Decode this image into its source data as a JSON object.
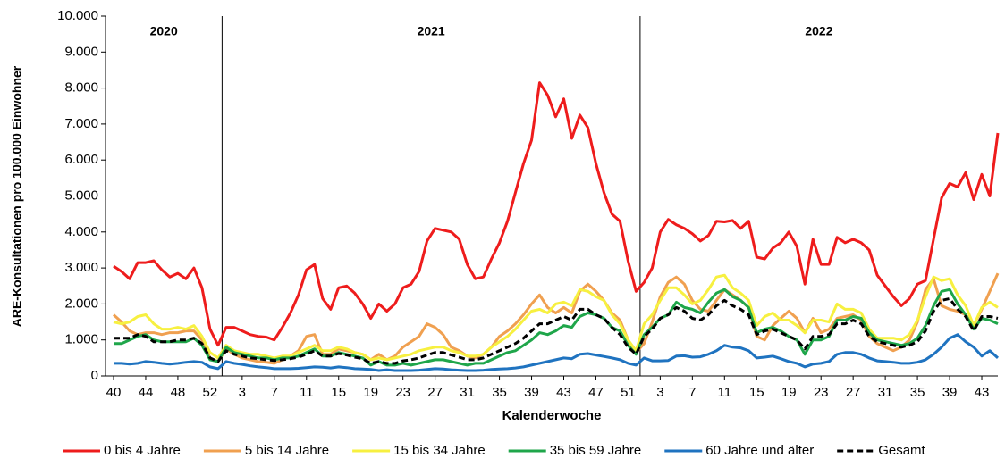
{
  "chart_data": {
    "type": "line",
    "y_label": "ARE-Konsultationen pro 100.000 Einwohner",
    "x_label": "Kalenderwoche",
    "year_labels": [
      "2020",
      "2021",
      "2022"
    ],
    "categories": [
      "40",
      null,
      null,
      null,
      "44",
      null,
      null,
      null,
      "48",
      null,
      null,
      null,
      "52",
      null,
      null,
      null,
      "3",
      null,
      null,
      null,
      "7",
      null,
      null,
      null,
      "11",
      null,
      null,
      null,
      "15",
      null,
      null,
      null,
      "19",
      null,
      null,
      null,
      "23",
      null,
      null,
      null,
      "27",
      null,
      null,
      null,
      "31",
      null,
      null,
      null,
      "35",
      null,
      null,
      null,
      "39",
      null,
      null,
      null,
      "43",
      null,
      null,
      null,
      "47",
      null,
      null,
      null,
      "51",
      null,
      null,
      null,
      "3",
      null,
      null,
      null,
      "7",
      null,
      null,
      null,
      "11",
      null,
      null,
      null,
      "15",
      null,
      null,
      null,
      "19",
      null,
      null,
      null,
      "23",
      null,
      null,
      null,
      "27",
      null,
      null,
      null,
      "31",
      null,
      null,
      null,
      "35",
      null,
      null,
      null,
      "39",
      null,
      null,
      null,
      "43",
      null,
      null
    ],
    "ylim": [
      0,
      10000
    ],
    "yticks": [
      {
        "value": 0,
        "label": "0"
      },
      {
        "value": 1000,
        "label": "1.000"
      },
      {
        "value": 2000,
        "label": "2.000"
      },
      {
        "value": 3000,
        "label": "3.000"
      },
      {
        "value": 4000,
        "label": "4.000"
      },
      {
        "value": 5000,
        "label": "5.000"
      },
      {
        "value": 6000,
        "label": "6.000"
      },
      {
        "value": 7000,
        "label": "7.000"
      },
      {
        "value": 8000,
        "label": "8.000"
      },
      {
        "value": 9000,
        "label": "9.000"
      },
      {
        "value": 10000,
        "label": "10.000"
      }
    ],
    "series": [
      {
        "name": "0 bis 4 Jahre",
        "color": "#ee1c1c",
        "values": [
          3050,
          2900,
          2700,
          3150,
          3150,
          3200,
          2950,
          2750,
          2850,
          2700,
          3000,
          2450,
          1300,
          850,
          1350,
          1350,
          1250,
          1150,
          1100,
          1080,
          1000,
          1350,
          1750,
          2250,
          2950,
          3100,
          2150,
          1850,
          2450,
          2500,
          2300,
          2000,
          1600,
          2000,
          1800,
          2000,
          2450,
          2550,
          2900,
          3750,
          4100,
          4050,
          4000,
          3800,
          3100,
          2700,
          2750,
          3250,
          3700,
          4300,
          5100,
          5900,
          6550,
          8150,
          7800,
          7200,
          7700,
          6600,
          7250,
          6900,
          5900,
          5100,
          4500,
          4300,
          3200,
          2350,
          2600,
          3000,
          4000,
          4350,
          4200,
          4100,
          3950,
          3750,
          3900,
          4300,
          4280,
          4320,
          4100,
          4300,
          3300,
          3250,
          3550,
          3700,
          4000,
          3600,
          2550,
          3800,
          3100,
          3100,
          3850,
          3700,
          3800,
          3700,
          3500,
          2800,
          2500,
          2200,
          1950,
          2150,
          2550,
          2650,
          3800,
          4950,
          5350,
          5250,
          5650,
          4900,
          5600,
          5000,
          6750
        ]
      },
      {
        "name": "5 bis 14 Jahre",
        "color": "#f0a050",
        "values": [
          1700,
          1500,
          1250,
          1150,
          1200,
          1200,
          1150,
          1200,
          1200,
          1250,
          1250,
          1000,
          500,
          400,
          750,
          600,
          500,
          450,
          400,
          380,
          350,
          450,
          550,
          700,
          1100,
          1150,
          600,
          600,
          750,
          700,
          650,
          600,
          450,
          600,
          450,
          550,
          800,
          950,
          1100,
          1450,
          1350,
          1150,
          800,
          700,
          550,
          500,
          600,
          800,
          1100,
          1250,
          1450,
          1700,
          2000,
          2250,
          1900,
          1750,
          1900,
          1750,
          2350,
          2550,
          2350,
          2100,
          1750,
          1550,
          1000,
          650,
          900,
          1500,
          2200,
          2600,
          2750,
          2550,
          2100,
          1850,
          1800,
          2100,
          2400,
          2250,
          2100,
          1900,
          1100,
          1000,
          1400,
          1600,
          1800,
          1600,
          1200,
          1600,
          1200,
          1300,
          1600,
          1650,
          1700,
          1550,
          1100,
          900,
          800,
          700,
          800,
          1000,
          1500,
          2400,
          2700,
          1950,
          1850,
          1800,
          1700,
          1400,
          1850,
          2350,
          2850
        ]
      },
      {
        "name": "15 bis 34 Jahre",
        "color": "#f7f040",
        "values": [
          1500,
          1450,
          1500,
          1650,
          1700,
          1450,
          1300,
          1300,
          1350,
          1300,
          1400,
          1100,
          650,
          500,
          850,
          700,
          650,
          600,
          600,
          550,
          500,
          550,
          550,
          650,
          750,
          850,
          700,
          700,
          800,
          750,
          650,
          600,
          450,
          500,
          450,
          500,
          550,
          600,
          700,
          750,
          800,
          800,
          700,
          650,
          550,
          550,
          600,
          800,
          950,
          1100,
          1300,
          1550,
          1800,
          1850,
          1750,
          2000,
          2050,
          1950,
          2400,
          2350,
          2200,
          2100,
          1700,
          1450,
          1000,
          700,
          1450,
          1700,
          2100,
          2450,
          2450,
          2250,
          2000,
          2100,
          2400,
          2750,
          2800,
          2450,
          2300,
          2100,
          1400,
          1650,
          1750,
          1550,
          1550,
          1400,
          1200,
          1550,
          1550,
          1500,
          2000,
          1850,
          1850,
          1750,
          1300,
          1050,
          1050,
          1050,
          1000,
          1150,
          1550,
          2200,
          2750,
          2650,
          2700,
          2250,
          1950,
          1400,
          1900,
          2050,
          1900
        ]
      },
      {
        "name": "35 bis 59 Jahre",
        "color": "#1fa64a",
        "values": [
          900,
          900,
          1000,
          1100,
          1150,
          1000,
          950,
          950,
          950,
          950,
          1050,
          850,
          450,
          400,
          800,
          650,
          600,
          550,
          500,
          500,
          450,
          500,
          500,
          550,
          650,
          750,
          550,
          550,
          650,
          600,
          550,
          500,
          300,
          400,
          300,
          300,
          350,
          300,
          350,
          400,
          450,
          450,
          400,
          350,
          300,
          350,
          350,
          450,
          550,
          650,
          700,
          850,
          1000,
          1200,
          1150,
          1250,
          1400,
          1350,
          1650,
          1750,
          1700,
          1600,
          1350,
          1250,
          850,
          600,
          1150,
          1350,
          1600,
          1700,
          2050,
          1900,
          1850,
          1750,
          2050,
          2300,
          2400,
          2200,
          2100,
          1900,
          1200,
          1300,
          1350,
          1250,
          1100,
          1000,
          600,
          1000,
          1000,
          1100,
          1550,
          1550,
          1650,
          1600,
          1200,
          1000,
          950,
          900,
          850,
          900,
          1050,
          1400,
          1950,
          2350,
          2400,
          2000,
          1700,
          1300,
          1600,
          1550,
          1450
        ]
      },
      {
        "name": "60 Jahre und älter",
        "color": "#1f73c0",
        "values": [
          350,
          350,
          330,
          350,
          400,
          380,
          350,
          330,
          350,
          380,
          400,
          380,
          250,
          200,
          400,
          350,
          320,
          280,
          250,
          230,
          200,
          200,
          200,
          210,
          230,
          250,
          240,
          220,
          250,
          230,
          200,
          190,
          180,
          150,
          170,
          150,
          150,
          150,
          160,
          180,
          200,
          190,
          170,
          160,
          150,
          150,
          160,
          180,
          190,
          200,
          220,
          250,
          300,
          350,
          400,
          450,
          500,
          480,
          600,
          620,
          580,
          540,
          500,
          450,
          350,
          300,
          500,
          420,
          420,
          430,
          550,
          560,
          520,
          530,
          600,
          700,
          850,
          800,
          780,
          700,
          500,
          520,
          550,
          480,
          400,
          350,
          250,
          330,
          350,
          400,
          600,
          650,
          650,
          600,
          500,
          420,
          400,
          380,
          350,
          350,
          380,
          450,
          600,
          800,
          1050,
          1150,
          950,
          800,
          550,
          700,
          500
        ]
      },
      {
        "name": "Gesamt",
        "color": "#000000",
        "dashed": true,
        "values": [
          1050,
          1050,
          1050,
          1150,
          1100,
          950,
          950,
          950,
          1000,
          1000,
          1050,
          900,
          500,
          400,
          700,
          600,
          550,
          500,
          480,
          450,
          430,
          450,
          480,
          520,
          600,
          700,
          550,
          550,
          620,
          580,
          520,
          480,
          350,
          400,
          350,
          350,
          420,
          450,
          500,
          580,
          650,
          650,
          580,
          520,
          450,
          450,
          500,
          600,
          700,
          800,
          900,
          1050,
          1250,
          1450,
          1450,
          1550,
          1650,
          1550,
          1850,
          1850,
          1700,
          1600,
          1350,
          1150,
          800,
          600,
          1100,
          1300,
          1600,
          1700,
          1900,
          1800,
          1600,
          1550,
          1700,
          1950,
          2100,
          1950,
          1850,
          1700,
          1150,
          1250,
          1300,
          1200,
          1100,
          1000,
          750,
          1100,
          1100,
          1150,
          1450,
          1450,
          1550,
          1450,
          1100,
          950,
          900,
          850,
          800,
          850,
          950,
          1250,
          1800,
          2100,
          2150,
          1850,
          1650,
          1250,
          1650,
          1650,
          1600
        ]
      }
    ]
  }
}
